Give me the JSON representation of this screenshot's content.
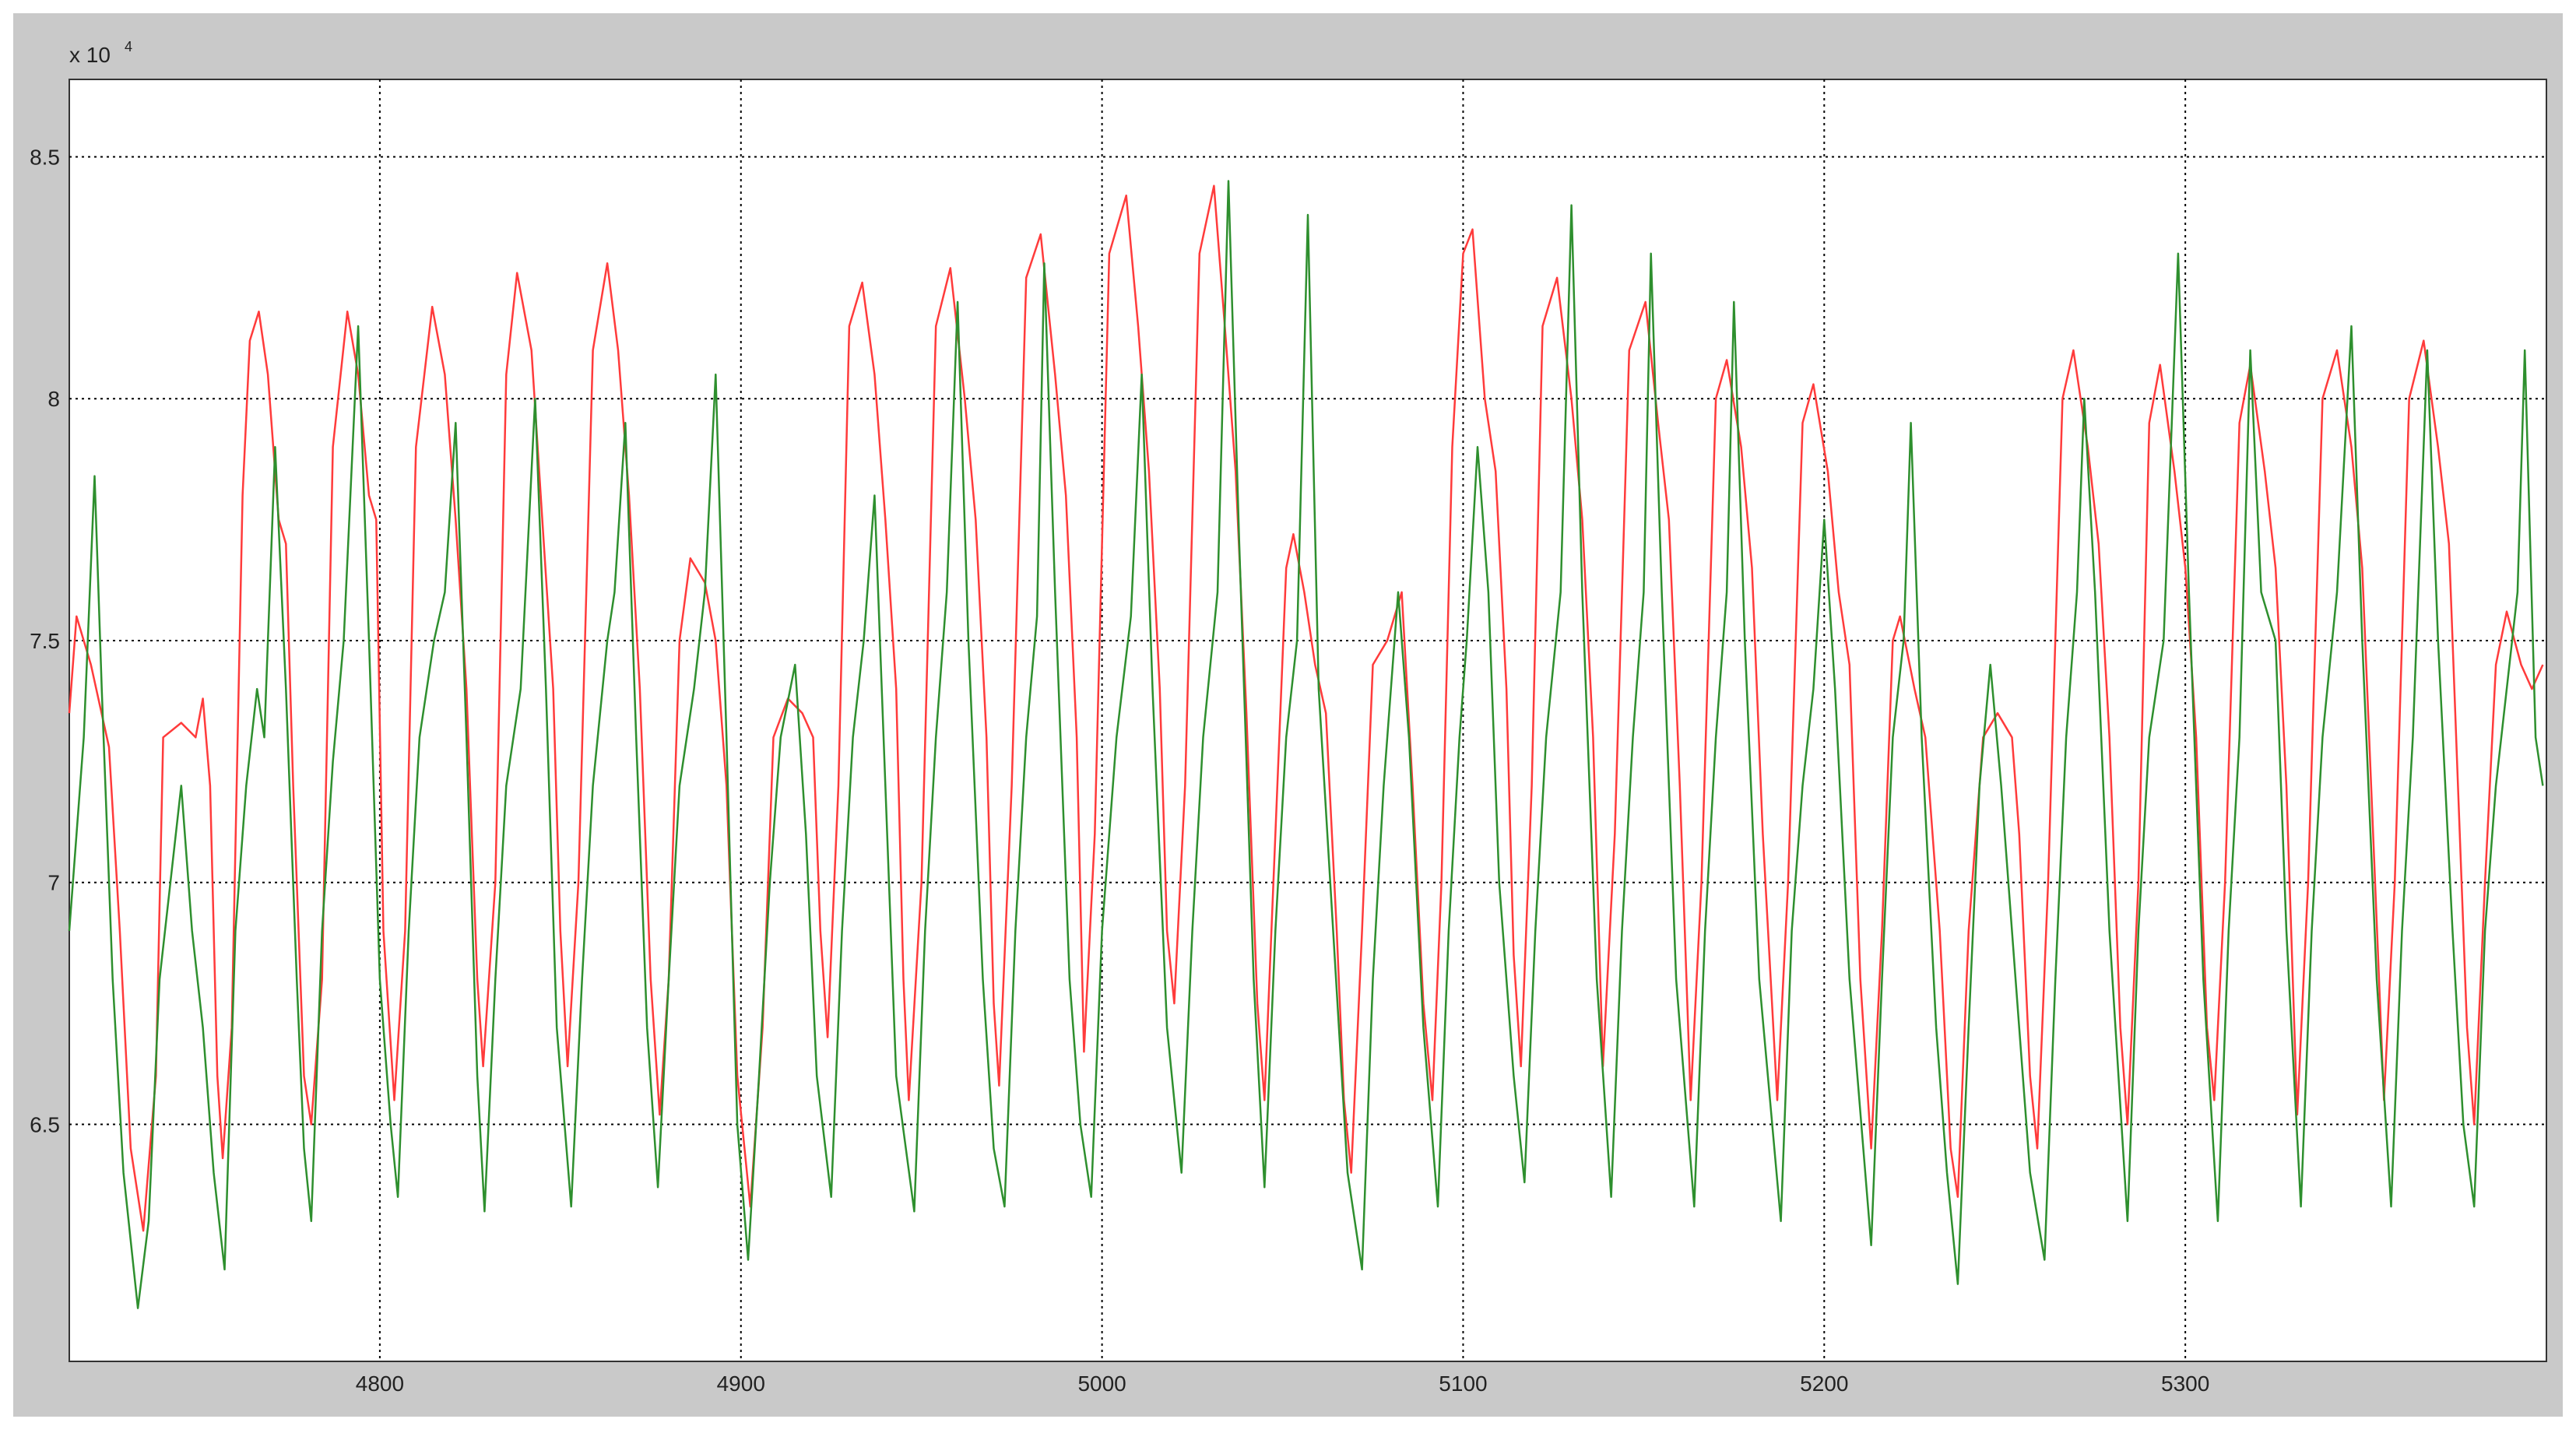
{
  "chart_data": {
    "type": "line",
    "y_multiplier": "x 10",
    "y_multiplier_exponent": "4",
    "xlim": [
      4714,
      5400
    ],
    "ylim": [
      6.01,
      8.66
    ],
    "xticks": [
      4800,
      4900,
      5000,
      5100,
      5200,
      5300
    ],
    "yticks": [
      6.5,
      7,
      7.5,
      8,
      8.5
    ],
    "grid": true,
    "series": [
      {
        "color": "#ff3b3b",
        "x": [
          4714,
          4716,
          4720,
          4725,
          4728,
          4731,
          4734.5,
          4738,
          4740,
          4745,
          4749,
          4751,
          4753,
          4755,
          4756.5,
          4759,
          4762,
          4764,
          4766.5,
          4769,
          4772,
          4774,
          4776,
          4779,
          4781,
          4784,
          4787,
          4791,
          4794,
          4797,
          4799,
          4801,
          4804,
          4807,
          4810,
          4814.5,
          4818,
          4821,
          4824,
          4827,
          4828.6,
          4832,
          4835,
          4838,
          4842,
          4845,
          4848,
          4850,
          4852,
          4855,
          4859,
          4863,
          4866,
          4869,
          4872,
          4875,
          4877.5,
          4880,
          4883,
          4886,
          4890,
          4893,
          4896,
          4899,
          4902.6,
          4906,
          4909,
          4913,
          4917,
          4920,
          4922,
          4924,
          4927,
          4930,
          4933.6,
          4937,
          4940,
          4943,
          4945,
          4946.5,
          4950,
          4954,
          4958,
          4962,
          4965,
          4968,
          4970,
          4971.5,
          4975,
          4979,
          4983,
          4987,
          4990,
          4993,
          4995,
          4998,
          5002,
          5006.7,
          5010,
          5013,
          5016,
          5018,
          5020,
          5023,
          5027,
          5031,
          5034,
          5037,
          5040,
          5043,
          5045,
          5048,
          5051,
          5053,
          5056,
          5059,
          5062,
          5065,
          5067,
          5069,
          5072,
          5075,
          5079,
          5083,
          5086,
          5089,
          5091.5,
          5094,
          5097,
          5100,
          5102.6,
          5106,
          5109,
          5112,
          5114,
          5116,
          5119,
          5122,
          5126,
          5130,
          5133,
          5136,
          5138.7,
          5142,
          5146,
          5150.5,
          5154,
          5157,
          5160,
          5163,
          5166,
          5170,
          5173,
          5177,
          5180,
          5183,
          5187,
          5190,
          5194,
          5197,
          5201,
          5204,
          5207,
          5210,
          5213,
          5216,
          5219,
          5221,
          5225,
          5228,
          5232,
          5235,
          5237,
          5240,
          5244,
          5248,
          5252,
          5254,
          5257,
          5259,
          5262,
          5266,
          5269,
          5273,
          5276,
          5279,
          5282,
          5284,
          5287,
          5290,
          5293,
          5297,
          5300,
          5303,
          5306,
          5308,
          5311,
          5315,
          5318,
          5322,
          5325,
          5328,
          5331,
          5334,
          5338,
          5342,
          5346,
          5349,
          5352,
          5355,
          5358,
          5362,
          5366,
          5370,
          5373,
          5376,
          5378,
          5380,
          5383,
          5386,
          5389,
          5393,
          5396,
          5399
        ],
        "values": [
          7.35,
          7.55,
          7.45,
          7.28,
          6.9,
          6.45,
          6.28,
          6.6,
          7.3,
          7.33,
          7.3,
          7.38,
          7.2,
          6.6,
          6.43,
          6.7,
          7.8,
          8.12,
          8.18,
          8.05,
          7.75,
          7.7,
          7.2,
          6.6,
          6.5,
          6.8,
          7.9,
          8.18,
          8.05,
          7.8,
          7.75,
          6.9,
          6.55,
          6.9,
          7.9,
          8.19,
          8.05,
          7.75,
          7.4,
          6.8,
          6.62,
          7.0,
          8.05,
          8.26,
          8.1,
          7.75,
          7.4,
          6.9,
          6.62,
          7.0,
          8.1,
          8.28,
          8.1,
          7.8,
          7.4,
          6.8,
          6.52,
          6.8,
          7.5,
          7.67,
          7.62,
          7.5,
          7.2,
          6.6,
          6.33,
          6.7,
          7.3,
          7.38,
          7.35,
          7.3,
          6.9,
          6.68,
          7.2,
          8.15,
          8.24,
          8.05,
          7.75,
          7.4,
          6.8,
          6.55,
          7.0,
          8.15,
          8.27,
          8.0,
          7.75,
          7.3,
          6.75,
          6.58,
          7.2,
          8.25,
          8.34,
          8.05,
          7.8,
          7.3,
          6.65,
          7.1,
          8.3,
          8.42,
          8.15,
          7.85,
          7.4,
          6.9,
          6.75,
          7.2,
          8.3,
          8.44,
          8.15,
          7.85,
          7.35,
          6.75,
          6.55,
          7.1,
          7.65,
          7.72,
          7.6,
          7.45,
          7.35,
          6.9,
          6.55,
          6.4,
          6.9,
          7.45,
          7.5,
          7.6,
          7.2,
          6.75,
          6.55,
          7.0,
          7.9,
          8.3,
          8.35,
          8.0,
          7.85,
          7.4,
          6.85,
          6.62,
          7.2,
          8.15,
          8.25,
          8.0,
          7.75,
          7.3,
          6.62,
          7.1,
          8.1,
          8.2,
          7.95,
          7.75,
          7.2,
          6.55,
          7.0,
          8.0,
          8.08,
          7.9,
          7.65,
          7.1,
          6.55,
          7.0,
          7.95,
          8.03,
          7.85,
          7.6,
          7.45,
          6.8,
          6.45,
          6.9,
          7.5,
          7.55,
          7.4,
          7.3,
          6.9,
          6.45,
          6.35,
          6.9,
          7.3,
          7.35,
          7.3,
          7.1,
          6.6,
          6.45,
          7.0,
          8.0,
          8.1,
          7.9,
          7.7,
          7.3,
          6.7,
          6.5,
          7.0,
          7.95,
          8.07,
          7.85,
          7.65,
          7.3,
          6.7,
          6.55,
          7.0,
          7.95,
          8.07,
          7.85,
          7.65,
          7.2,
          6.52,
          7.0,
          8.0,
          8.1,
          7.9,
          7.65,
          7.1,
          6.55,
          7.0,
          8.0,
          8.12,
          7.9,
          7.7,
          7.1,
          6.7,
          6.5,
          7.0,
          7.45,
          7.56,
          7.45,
          7.4,
          7.45
        ]
      },
      {
        "color": "#2e8f2e",
        "x": [
          4714,
          4716,
          4718,
          4721,
          4723,
          4726,
          4729,
          4733,
          4736,
          4739,
          4742,
          4745,
          4748,
          4751,
          4754,
          4757,
          4760,
          4763,
          4766,
          4768,
          4771,
          4774,
          4777,
          4779,
          4781,
          4784,
          4787,
          4790,
          4794,
          4797,
          4800,
          4803,
          4805,
          4808,
          4811,
          4815,
          4818,
          4821,
          4824,
          4827,
          4829,
          4832,
          4835,
          4839,
          4843,
          4846,
          4849,
          4853,
          4856,
          4859,
          4863,
          4865,
          4868,
          4871,
          4874,
          4877,
          4880,
          4883,
          4887,
          4890,
          4893,
          4896,
          4899,
          4902,
          4905,
          4908,
          4911,
          4915,
          4918,
          4921,
          4925,
          4928,
          4931,
          4934,
          4937,
          4940,
          4943,
          4948,
          4951,
          4954,
          4957,
          4960,
          4963,
          4967,
          4970,
          4973,
          4976,
          4979,
          4982,
          4984,
          4987,
          4991,
          4994,
          4997,
          5000,
          5004,
          5008,
          5011,
          5014,
          5018,
          5022,
          5025,
          5028,
          5032,
          5035,
          5038,
          5042,
          5045,
          5048,
          5051,
          5054,
          5057,
          5060,
          5064,
          5068,
          5072,
          5075,
          5078,
          5082,
          5085,
          5089,
          5093,
          5096,
          5099,
          5101,
          5104,
          5107,
          5110,
          5114,
          5117,
          5120,
          5123,
          5127,
          5130,
          5133,
          5137,
          5141,
          5144,
          5147,
          5150,
          5152,
          5155,
          5159,
          5164,
          5167,
          5170,
          5173,
          5175,
          5178,
          5182,
          5188,
          5191,
          5194,
          5197,
          5200,
          5203,
          5207,
          5213,
          5216,
          5219,
          5222,
          5224,
          5227,
          5231,
          5234,
          5237,
          5240,
          5243,
          5246,
          5249,
          5253,
          5257,
          5261,
          5264,
          5267,
          5270,
          5272,
          5275,
          5279,
          5284,
          5287,
          5290,
          5294,
          5298,
          5301,
          5305,
          5309,
          5312,
          5315,
          5318,
          5321,
          5325,
          5328,
          5332,
          5335,
          5338,
          5342,
          5346,
          5349,
          5353,
          5357,
          5360,
          5363,
          5367,
          5370,
          5374,
          5377,
          5380,
          5383,
          5386,
          5389,
          5392,
          5394,
          5397,
          5399
        ],
        "values": [
          6.9,
          7.1,
          7.3,
          7.84,
          7.4,
          6.8,
          6.4,
          6.12,
          6.3,
          6.8,
          7.0,
          7.2,
          6.9,
          6.7,
          6.4,
          6.2,
          6.9,
          7.2,
          7.4,
          7.3,
          7.9,
          7.4,
          6.8,
          6.45,
          6.3,
          6.9,
          7.25,
          7.5,
          8.15,
          7.5,
          6.8,
          6.5,
          6.35,
          6.9,
          7.3,
          7.5,
          7.6,
          7.95,
          7.3,
          6.6,
          6.32,
          6.8,
          7.2,
          7.4,
          8.0,
          7.4,
          6.7,
          6.33,
          6.8,
          7.2,
          7.5,
          7.6,
          7.95,
          7.3,
          6.7,
          6.37,
          6.8,
          7.2,
          7.4,
          7.6,
          8.05,
          7.3,
          6.5,
          6.22,
          6.6,
          7.0,
          7.3,
          7.45,
          7.1,
          6.6,
          6.35,
          6.9,
          7.3,
          7.5,
          7.8,
          7.2,
          6.6,
          6.32,
          6.9,
          7.3,
          7.6,
          8.2,
          7.5,
          6.8,
          6.45,
          6.33,
          6.9,
          7.3,
          7.55,
          8.28,
          7.6,
          6.8,
          6.5,
          6.35,
          6.9,
          7.3,
          7.55,
          8.05,
          7.4,
          6.7,
          6.4,
          6.9,
          7.3,
          7.6,
          8.45,
          7.7,
          6.8,
          6.37,
          6.9,
          7.3,
          7.5,
          8.38,
          7.4,
          6.9,
          6.4,
          6.2,
          6.8,
          7.2,
          7.6,
          7.3,
          6.7,
          6.33,
          6.9,
          7.3,
          7.5,
          7.9,
          7.6,
          7.0,
          6.6,
          6.38,
          6.9,
          7.3,
          7.6,
          8.4,
          7.6,
          6.8,
          6.35,
          6.9,
          7.3,
          7.6,
          8.3,
          7.6,
          6.8,
          6.33,
          6.9,
          7.3,
          7.6,
          8.2,
          7.5,
          6.8,
          6.3,
          6.9,
          7.2,
          7.4,
          7.75,
          7.4,
          6.8,
          6.25,
          6.8,
          7.3,
          7.5,
          7.95,
          7.3,
          6.7,
          6.4,
          6.17,
          6.7,
          7.2,
          7.45,
          7.2,
          6.8,
          6.4,
          6.22,
          6.8,
          7.3,
          7.6,
          8.0,
          7.6,
          6.9,
          6.3,
          6.9,
          7.3,
          7.5,
          8.3,
          7.6,
          6.8,
          6.3,
          6.9,
          7.3,
          8.1,
          7.6,
          7.5,
          6.9,
          6.33,
          6.9,
          7.3,
          7.6,
          8.15,
          7.5,
          6.8,
          6.33,
          6.9,
          7.3,
          8.1,
          7.5,
          6.9,
          6.5,
          6.33,
          6.9,
          7.2,
          7.4,
          7.6,
          8.1,
          7.3,
          7.2
        ]
      }
    ]
  }
}
